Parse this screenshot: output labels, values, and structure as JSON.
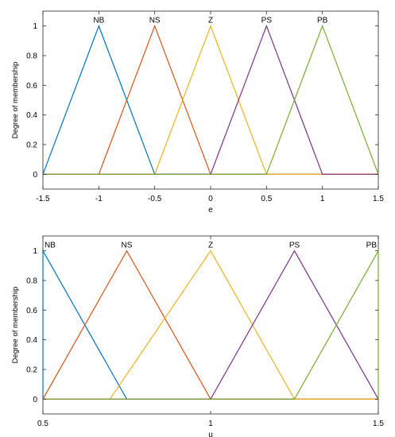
{
  "chart_data": [
    {
      "type": "line",
      "xlabel": "e",
      "ylabel": "Degree of membership",
      "xlim": [
        -1.5,
        1.5
      ],
      "ylim": [
        -0.1,
        1.1
      ],
      "xticks": [
        -1.5,
        -1,
        -0.5,
        0,
        0.5,
        1,
        1.5
      ],
      "xtick_labels": [
        "-1.5",
        "-1",
        "-0.5",
        "0",
        "0.5",
        "1",
        "1.5"
      ],
      "yticks": [
        0,
        0.2,
        0.4,
        0.6,
        0.8,
        1
      ],
      "ytick_labels": [
        "0",
        "0.2",
        "0.4",
        "0.6",
        "0.8",
        "1"
      ],
      "grid": false,
      "series": [
        {
          "name": "NB",
          "color": "#0072BD",
          "x": [
            -1.5,
            -1.5,
            -1,
            -0.5,
            1.5
          ],
          "y": [
            0,
            0,
            1,
            0,
            0
          ]
        },
        {
          "name": "NS",
          "color": "#D95319",
          "x": [
            -1.5,
            -1,
            -0.5,
            0,
            1.5
          ],
          "y": [
            0,
            0,
            1,
            0,
            0
          ]
        },
        {
          "name": "Z",
          "color": "#EDB120",
          "x": [
            -1.5,
            -0.5,
            0,
            0.5,
            1.5
          ],
          "y": [
            0,
            0,
            1,
            0,
            0
          ]
        },
        {
          "name": "PS",
          "color": "#7E2F8E",
          "x": [
            -1.5,
            0,
            0.5,
            1,
            1.5
          ],
          "y": [
            0,
            0,
            1,
            0,
            0
          ]
        },
        {
          "name": "PB",
          "color": "#77AC30",
          "x": [
            -1.5,
            0.5,
            1,
            1.5,
            1.5
          ],
          "y": [
            0,
            0,
            1,
            0,
            0
          ]
        }
      ]
    },
    {
      "type": "line",
      "xlabel": "u",
      "ylabel": "Degree of membership",
      "xlim": [
        0.5,
        1.5
      ],
      "ylim": [
        -0.1,
        1.1
      ],
      "xticks": [
        0.5,
        1,
        1.5
      ],
      "xtick_labels": [
        "0.5",
        "1",
        "1.5"
      ],
      "yticks": [
        0,
        0.2,
        0.4,
        0.6,
        0.8,
        1
      ],
      "ytick_labels": [
        "0",
        "0.2",
        "0.4",
        "0.6",
        "0.8",
        "1"
      ],
      "grid": false,
      "series": [
        {
          "name": "NB",
          "color": "#0072BD",
          "x": [
            0.5,
            0.5,
            0.75,
            1.5
          ],
          "y": [
            0,
            1,
            0,
            0
          ]
        },
        {
          "name": "NS",
          "color": "#D95319",
          "x": [
            0.5,
            0.75,
            1,
            1.5
          ],
          "y": [
            0,
            1,
            0,
            0
          ]
        },
        {
          "name": "Z",
          "color": "#EDB120",
          "x": [
            0.5,
            0.7,
            1,
            1.25,
            1.5
          ],
          "y": [
            0,
            0,
            1,
            0,
            0
          ]
        },
        {
          "name": "PS",
          "color": "#7E2F8E",
          "x": [
            0.5,
            1,
            1.25,
            1.5
          ],
          "y": [
            0,
            0,
            1,
            0
          ]
        },
        {
          "name": "PB",
          "color": "#77AC30",
          "x": [
            0.5,
            1.25,
            1.5,
            1.5
          ],
          "y": [
            0,
            0,
            1,
            0
          ]
        }
      ]
    }
  ]
}
